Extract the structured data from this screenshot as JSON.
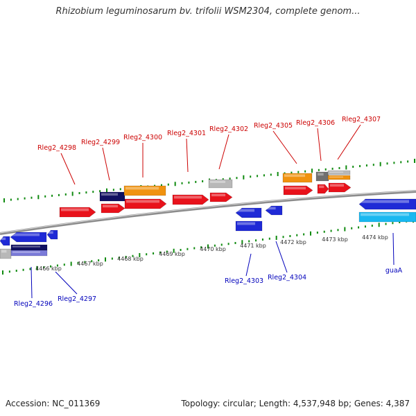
{
  "title": "Rhizobium leguminosarum bv. trifolii WSM2304, complete genom...",
  "footer": {
    "accession": "Accession: NC_011369",
    "stats": "Topology: circular; Length: 4,537,948 bp; Genes: 4,387"
  },
  "colors": {
    "backbone": "#8c8c8c",
    "tick_forward": "#0f8a0f",
    "tick_reverse": "#0f8a0f",
    "label_forward": "#cc0000",
    "label_reverse": "#0000bb",
    "cds_forward": "#e8121b",
    "cds_reverse": "#1f2ad6",
    "gene_orange": "#f0920f",
    "gene_navy": "#101060",
    "gene_grey": "#b8b8b8",
    "gene_darkgrey": "#707070",
    "gene_cyan": "#19b8f0"
  },
  "tick_labels": [
    "4466 kbp",
    "4467 kbp",
    "4468 kbp",
    "4469 kbp",
    "4470 kbp",
    "4471 kbp",
    "4472 kbp",
    "4473 kbp",
    "4474 kbp"
  ],
  "forward_labels": [
    "Rleg2_4298",
    "Rleg2_4299",
    "Rleg2_4300",
    "Rleg2_4301",
    "Rleg2_4302",
    "Rleg2_4305",
    "Rleg2_4306",
    "Rleg2_4307"
  ],
  "reverse_labels": [
    "Rleg2_4296",
    "Rleg2_4297",
    "Rleg2_4303",
    "Rleg2_4304",
    "guaA"
  ]
}
